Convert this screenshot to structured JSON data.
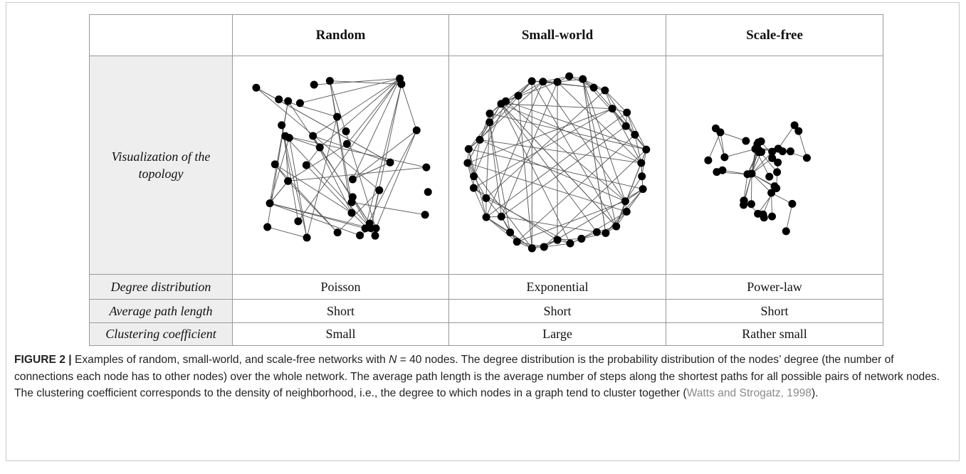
{
  "table": {
    "columns": [
      "Random",
      "Small-world",
      "Scale-free"
    ],
    "rows": [
      {
        "label": "Visualization of the topology"
      },
      {
        "label": "Degree distribution",
        "values": [
          "Poisson",
          "Exponential",
          "Power-law"
        ]
      },
      {
        "label": "Average path length",
        "values": [
          "Short",
          "Short",
          "Short"
        ]
      },
      {
        "label": "Clustering coefficient",
        "values": [
          "Small",
          "Large",
          "Rather small"
        ]
      }
    ]
  },
  "caption": {
    "label": "FIGURE 2 |",
    "text_before": "Examples of random, small-world, and scale-free networks with ",
    "variable": "N",
    "text_mid": " = 40 nodes. The degree distribution is the probability distribution of the nodes’ degree (the number of connections each node has to other nodes) over the whole network. The average path length is the average number of steps along the shortest paths for all possible pairs of network nodes. The clustering coefficient corresponds to the density of neighborhood, i.e., the degree to which nodes in a graph tend to cluster together (",
    "citation": "Watts and Strogatz, 1998",
    "text_after": ")."
  }
}
